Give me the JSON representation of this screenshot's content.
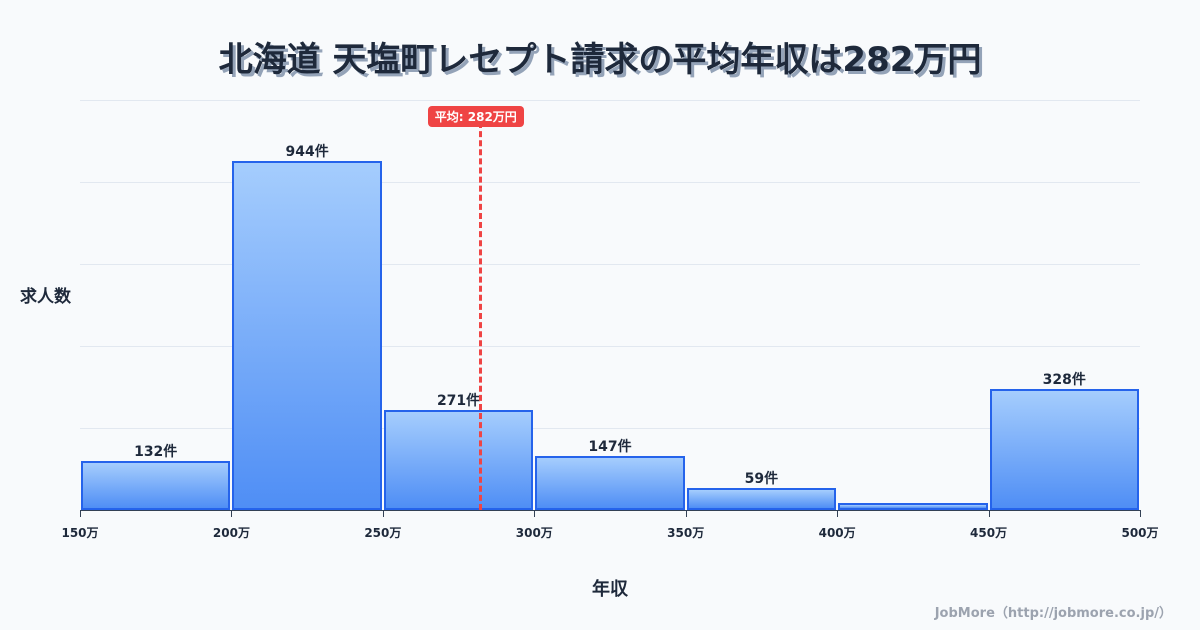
{
  "title": "北海道 天塩町レセプト請求の平均年収は282万円",
  "mean_badge": "平均: 282万円",
  "ylabel": "求人数",
  "xlabel": "年収",
  "footer": "JobMore（http://jobmore.co.jp/）",
  "colors": {
    "bar_border": "#2563eb",
    "bar_top": "#a5cdfd",
    "bar_bottom": "#4f8ef5",
    "mean": "#ef4444",
    "text": "#1e293b"
  },
  "chart_data": {
    "type": "bar",
    "title": "北海道 天塩町レセプト請求の平均年収は282万円",
    "xlabel": "年収",
    "ylabel": "求人数",
    "categories": [
      "150-200万",
      "200-250万",
      "250-300万",
      "300-350万",
      "350-400万",
      "400-450万",
      "450-500万"
    ],
    "bin_edges": [
      150,
      200,
      250,
      300,
      350,
      400,
      450,
      500
    ],
    "tick_labels": [
      "150万",
      "200万",
      "250万",
      "300万",
      "350万",
      "400万",
      "450万",
      "500万"
    ],
    "values": [
      132,
      944,
      271,
      147,
      59,
      19,
      328
    ],
    "value_labels": [
      "132件",
      "944件",
      "271件",
      "147件",
      "59件",
      "",
      "328件"
    ],
    "mean": 282,
    "mean_label": "平均: 282万円",
    "ylim": [
      0,
      1110
    ],
    "grid": true,
    "legend": "none"
  }
}
